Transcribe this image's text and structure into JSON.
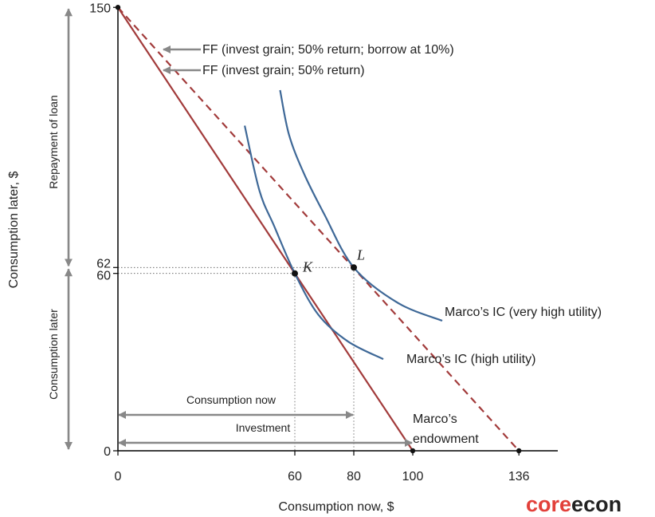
{
  "chart_data": {
    "type": "line",
    "xlabel": "Consumption now, $",
    "ylabel": "Consumption later, $",
    "xlim": [
      0,
      150
    ],
    "ylim": [
      0,
      150
    ],
    "x_ticks": [
      0,
      60,
      80,
      100,
      136
    ],
    "y_ticks": [
      0,
      60,
      62,
      150
    ],
    "series": [
      {
        "name": "FF (invest grain; 50% return)",
        "style": "solid",
        "color": "#a23b3b",
        "points": [
          [
            0,
            150
          ],
          [
            100,
            0
          ]
        ]
      },
      {
        "name": "FF (invest grain; 50% return; borrow at 10%)",
        "style": "dashed",
        "color": "#a23b3b",
        "points": [
          [
            0,
            150
          ],
          [
            136,
            0
          ]
        ]
      },
      {
        "name": "Marco’s IC (high utility)",
        "style": "solid",
        "color": "#3e6897",
        "points": [
          [
            43,
            110
          ],
          [
            48,
            88
          ],
          [
            53,
            76
          ],
          [
            60,
            60
          ],
          [
            68,
            46
          ],
          [
            78,
            37
          ],
          [
            90,
            31
          ]
        ]
      },
      {
        "name": "Marco’s IC (very high utility)",
        "style": "solid",
        "color": "#3e6897",
        "points": [
          [
            55,
            122
          ],
          [
            58,
            107
          ],
          [
            63,
            94
          ],
          [
            70,
            80
          ],
          [
            80,
            62
          ],
          [
            95,
            50
          ],
          [
            110,
            44
          ]
        ]
      }
    ],
    "points": [
      {
        "label": "K",
        "x": 60,
        "y": 60
      },
      {
        "label": "L",
        "x": 80,
        "y": 62
      }
    ],
    "annotations": {
      "ff_borrow": "FF (invest grain; 50% return; borrow at 10%)",
      "ff": "FF (invest grain; 50% return)",
      "ic_very_high": "Marco’s IC (very high utility)",
      "ic_high": "Marco’s IC (high utility)",
      "endowment_line1": "Marco’s",
      "endowment_line2": "endowment",
      "consumption_now_range": "Consumption now",
      "investment_range": "Investment",
      "repayment_range": "Repayment of loan",
      "consumption_later_range": "Consumption later"
    },
    "brackets": {
      "consumption_now": [
        0,
        80
      ],
      "investment": [
        0,
        100
      ],
      "repayment": [
        62,
        150
      ],
      "consumption_later": [
        0,
        62
      ]
    },
    "colors": {
      "ff": "#a23b3b",
      "ic": "#3e6897",
      "bracket": "#888888",
      "axis": "#000000",
      "brand": "#e2403a"
    }
  },
  "logo": {
    "part1": "core",
    "part2": "econ"
  }
}
